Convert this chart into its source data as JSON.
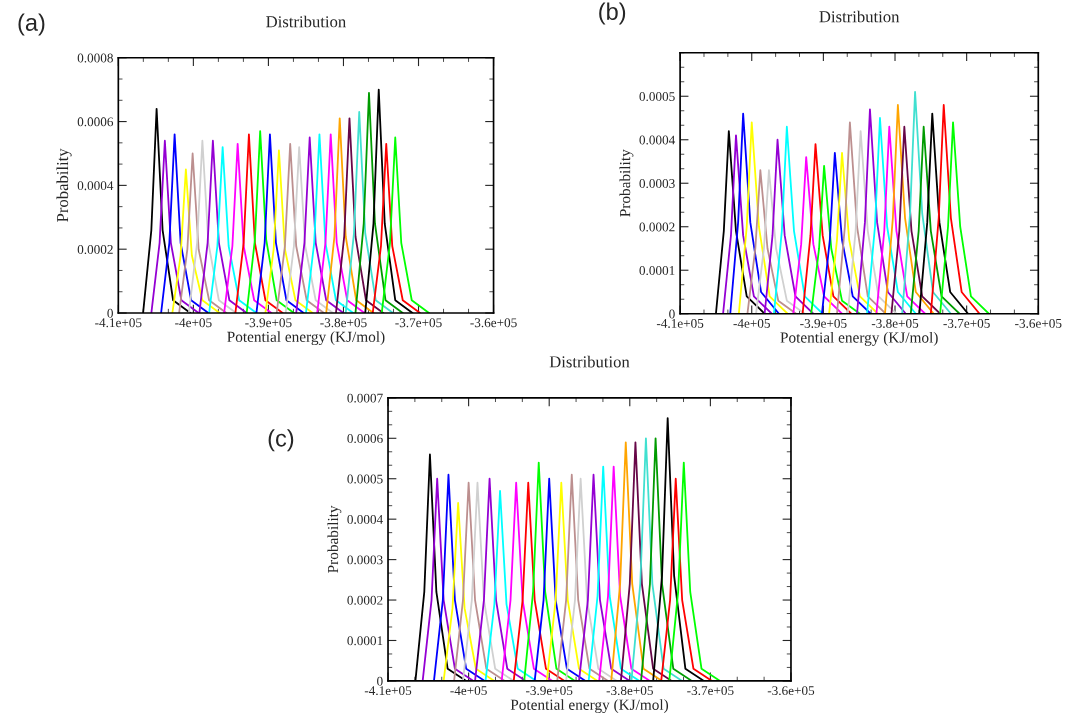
{
  "chart_data": [
    {
      "type": "line",
      "title": "Distribution",
      "xlabel": "Potential energy (KJ/mol)",
      "ylabel": "Probability",
      "annotations": [
        "(a)"
      ],
      "xlim": [
        -410000,
        -360000
      ],
      "ylim": [
        0,
        0.0008
      ],
      "xticks": [
        {
          "value": -410000,
          "label": "-4.1e+05"
        },
        {
          "value": -400000,
          "label": "-4e+05"
        },
        {
          "value": -390000,
          "label": "-3.9e+05"
        },
        {
          "value": -380000,
          "label": "-3.8e+05"
        },
        {
          "value": -370000,
          "label": "-3.7e+05"
        },
        {
          "value": -360000,
          "label": "-3.6e+05"
        }
      ],
      "yticks": [
        0,
        0.0002,
        0.0004,
        0.0006,
        0.0008
      ],
      "grid": false,
      "marker": "none",
      "line_style": "solid",
      "series": [
        {
          "color": "#000000",
          "x": [
            -406700,
            -405600,
            -404900,
            -404100,
            -402700,
            -400400
          ],
          "values": [
            0,
            0.00026,
            0.00064,
            0.00026,
            4e-05,
            0
          ]
        },
        {
          "color": "#9400d3",
          "x": [
            -405600,
            -404500,
            -403800,
            -403000,
            -401600,
            -399300
          ],
          "values": [
            0,
            0.00022,
            0.00054,
            0.00022,
            4e-05,
            0
          ]
        },
        {
          "color": "#0000ff",
          "x": [
            -404300,
            -403200,
            -402500,
            -401700,
            -400300,
            -398000
          ],
          "values": [
            0,
            0.00022,
            0.00056,
            0.00022,
            4e-05,
            0
          ]
        },
        {
          "color": "#ffff00",
          "x": [
            -402800,
            -401700,
            -401000,
            -400200,
            -398800,
            -396500
          ],
          "values": [
            0,
            0.00018,
            0.00045,
            0.00018,
            4e-05,
            0
          ]
        },
        {
          "color": "#bc8f8f",
          "x": [
            -401900,
            -400800,
            -400100,
            -399300,
            -397900,
            -395600
          ],
          "values": [
            0,
            0.0002,
            0.0005,
            0.0002,
            4e-05,
            0
          ]
        },
        {
          "color": "#d0d0d0",
          "x": [
            -400600,
            -399500,
            -398800,
            -398000,
            -396600,
            -394300
          ],
          "values": [
            0,
            0.00022,
            0.00054,
            0.00022,
            4e-05,
            0
          ]
        },
        {
          "color": "#9400d3",
          "x": [
            -399200,
            -398100,
            -397400,
            -396600,
            -395200,
            -392900
          ],
          "values": [
            0,
            0.00022,
            0.00054,
            0.00022,
            4e-05,
            0
          ]
        },
        {
          "color": "#00ffff",
          "x": [
            -397900,
            -396800,
            -396100,
            -395300,
            -393900,
            -391600
          ],
          "values": [
            0,
            0.00021,
            0.00052,
            0.00021,
            4e-05,
            0
          ]
        },
        {
          "color": "#ff00ff",
          "x": [
            -395900,
            -394800,
            -394100,
            -393300,
            -391900,
            -389600
          ],
          "values": [
            0,
            0.00021,
            0.00053,
            0.00021,
            4e-05,
            0
          ]
        },
        {
          "color": "#ff0000",
          "x": [
            -394400,
            -393300,
            -392600,
            -391800,
            -390400,
            -388100
          ],
          "values": [
            0,
            0.00022,
            0.00056,
            0.00022,
            4e-05,
            0
          ]
        },
        {
          "color": "#00ff00",
          "x": [
            -392900,
            -391800,
            -391100,
            -390300,
            -388900,
            -386600
          ],
          "values": [
            0,
            0.00023,
            0.00057,
            0.00023,
            4e-05,
            0
          ]
        },
        {
          "color": "#0000ff",
          "x": [
            -391600,
            -390500,
            -389800,
            -389000,
            -387600,
            -385300
          ],
          "values": [
            0,
            0.00022,
            0.00056,
            0.00022,
            4e-05,
            0
          ]
        },
        {
          "color": "#ffff00",
          "x": [
            -390400,
            -389300,
            -388600,
            -387800,
            -386400,
            -384100
          ],
          "values": [
            0,
            0.0002,
            0.00051,
            0.0002,
            4e-05,
            0
          ]
        },
        {
          "color": "#bc8f8f",
          "x": [
            -388900,
            -387800,
            -387100,
            -386300,
            -384900,
            -382600
          ],
          "values": [
            0,
            0.00021,
            0.00053,
            0.00021,
            4e-05,
            0
          ]
        },
        {
          "color": "#d0d0d0",
          "x": [
            -387700,
            -386600,
            -385900,
            -385100,
            -383700,
            -381400
          ],
          "values": [
            0,
            0.00021,
            0.00052,
            0.00021,
            4e-05,
            0
          ]
        },
        {
          "color": "#9400d3",
          "x": [
            -386300,
            -385200,
            -384500,
            -383700,
            -382300,
            -380000
          ],
          "values": [
            0,
            0.00022,
            0.00055,
            0.00022,
            4e-05,
            0
          ]
        },
        {
          "color": "#00ffff",
          "x": [
            -385000,
            -383900,
            -383200,
            -382400,
            -381000,
            -378700
          ],
          "values": [
            0,
            0.00022,
            0.00056,
            0.00022,
            4e-05,
            0
          ]
        },
        {
          "color": "#ff00ff",
          "x": [
            -383500,
            -382400,
            -381700,
            -380900,
            -379500,
            -377200
          ],
          "values": [
            0,
            0.00022,
            0.00056,
            0.00022,
            4e-05,
            0
          ]
        },
        {
          "color": "#ffa500",
          "x": [
            -382300,
            -381200,
            -380500,
            -379700,
            -378300,
            -376000
          ],
          "values": [
            0,
            0.00024,
            0.00061,
            0.00024,
            4e-05,
            0
          ]
        },
        {
          "color": "#670748",
          "x": [
            -381000,
            -379900,
            -379200,
            -378400,
            -377000,
            -374700
          ],
          "values": [
            0,
            0.00024,
            0.00061,
            0.00024,
            4e-05,
            0
          ]
        },
        {
          "color": "#40e0d0",
          "x": [
            -379700,
            -378600,
            -377900,
            -377100,
            -375700,
            -373400
          ],
          "values": [
            0,
            0.00025,
            0.00063,
            0.00025,
            4e-05,
            0
          ]
        },
        {
          "color": "#009b00",
          "x": [
            -378400,
            -377300,
            -376600,
            -375800,
            -374400,
            -372100
          ],
          "values": [
            0,
            0.00028,
            0.00069,
            0.00028,
            4e-05,
            0
          ]
        },
        {
          "color": "#000000",
          "x": [
            -377100,
            -376000,
            -375300,
            -374500,
            -373100,
            -370800
          ],
          "values": [
            0,
            0.00028,
            0.0007,
            0.00028,
            4e-05,
            0
          ]
        },
        {
          "color": "#ff0000",
          "x": [
            -376100,
            -375000,
            -374300,
            -373500,
            -372100,
            -369800
          ],
          "values": [
            0,
            0.00021,
            0.00053,
            0.00021,
            4e-05,
            0
          ]
        },
        {
          "color": "#00ff00",
          "x": [
            -374900,
            -373800,
            -373100,
            -372300,
            -370900,
            -368600
          ],
          "values": [
            0,
            0.00022,
            0.00055,
            0.00022,
            4e-05,
            0
          ]
        }
      ]
    },
    {
      "type": "line",
      "title": "Distribution",
      "xlabel": "Potential energy (KJ/mol)",
      "ylabel": "Probability",
      "annotations": [
        "(b)"
      ],
      "xlim": [
        -410000,
        -360000
      ],
      "ylim": [
        0,
        0.0006
      ],
      "xticks": [
        {
          "value": -410000,
          "label": "-4.1e+05"
        },
        {
          "value": -400000,
          "label": "-4e+05"
        },
        {
          "value": -390000,
          "label": "-3.9e+05"
        },
        {
          "value": -380000,
          "label": "-3.8e+05"
        },
        {
          "value": -370000,
          "label": "-3.7e+05"
        },
        {
          "value": -360000,
          "label": "-3.6e+05"
        }
      ],
      "yticks": [
        0,
        0.0001,
        0.0002,
        0.0003,
        0.0004,
        0.0005
      ],
      "grid": false,
      "marker": "none",
      "line_style": "solid",
      "series": [
        {
          "color": "#000000",
          "x": [
            -405000,
            -403900,
            -403200,
            -402200,
            -400700,
            -398200
          ],
          "values": [
            0,
            0.00019,
            0.00042,
            0.00019,
            4e-05,
            0
          ]
        },
        {
          "color": "#9400d3",
          "x": [
            -404000,
            -402900,
            -402200,
            -401200,
            -399700,
            -397200
          ],
          "values": [
            0,
            0.00018,
            0.00041,
            0.00018,
            4e-05,
            0
          ]
        },
        {
          "color": "#0000ff",
          "x": [
            -403000,
            -401900,
            -401200,
            -400200,
            -398700,
            -396200
          ],
          "values": [
            0,
            0.00021,
            0.00046,
            0.00021,
            5e-05,
            0
          ]
        },
        {
          "color": "#ffff00",
          "x": [
            -401800,
            -400700,
            -400000,
            -399000,
            -397500,
            -395000
          ],
          "values": [
            0,
            0.0002,
            0.00044,
            0.0002,
            4e-05,
            0
          ]
        },
        {
          "color": "#bc8f8f",
          "x": [
            -400600,
            -399500,
            -398800,
            -397800,
            -396300,
            -393800
          ],
          "values": [
            0,
            0.00015,
            0.00033,
            0.00015,
            3e-05,
            0
          ]
        },
        {
          "color": "#d0d0d0",
          "x": [
            -399400,
            -398300,
            -397600,
            -396600,
            -395100,
            -392600
          ],
          "values": [
            0,
            0.00015,
            0.00033,
            0.00015,
            3e-05,
            0
          ]
        },
        {
          "color": "#9400d3",
          "x": [
            -398200,
            -397100,
            -396400,
            -395400,
            -393900,
            -391400
          ],
          "values": [
            0,
            0.00018,
            0.0004,
            0.00018,
            4e-05,
            0
          ]
        },
        {
          "color": "#00ffff",
          "x": [
            -396900,
            -395800,
            -395100,
            -394100,
            -392600,
            -390100
          ],
          "values": [
            0,
            0.00019,
            0.00043,
            0.00019,
            4e-05,
            0
          ]
        },
        {
          "color": "#ff00ff",
          "x": [
            -394200,
            -393100,
            -392400,
            -391400,
            -389900,
            -387400
          ],
          "values": [
            0,
            0.00016,
            0.00036,
            0.00016,
            4e-05,
            0
          ]
        },
        {
          "color": "#ff0000",
          "x": [
            -392900,
            -391800,
            -391100,
            -390100,
            -388600,
            -386100
          ],
          "values": [
            0,
            0.00018,
            0.00039,
            0.00018,
            4e-05,
            0
          ]
        },
        {
          "color": "#00ff00",
          "x": [
            -391700,
            -390600,
            -389900,
            -388900,
            -387400,
            -384900
          ],
          "values": [
            0,
            0.00015,
            0.00034,
            0.00015,
            3e-05,
            0
          ]
        },
        {
          "color": "#0000ff",
          "x": [
            -390200,
            -389100,
            -388400,
            -387400,
            -385900,
            -383400
          ],
          "values": [
            0,
            0.00017,
            0.00037,
            0.00017,
            4e-05,
            0
          ]
        },
        {
          "color": "#ffff00",
          "x": [
            -389200,
            -388100,
            -387400,
            -386400,
            -384900,
            -382400
          ],
          "values": [
            0,
            0.00017,
            0.00037,
            0.00017,
            4e-05,
            0
          ]
        },
        {
          "color": "#bc8f8f",
          "x": [
            -388100,
            -387000,
            -386300,
            -385300,
            -383800,
            -381300
          ],
          "values": [
            0,
            0.0002,
            0.00044,
            0.0002,
            4e-05,
            0
          ]
        },
        {
          "color": "#d0d0d0",
          "x": [
            -386600,
            -385500,
            -384800,
            -383800,
            -382300,
            -379800
          ],
          "values": [
            0,
            0.00019,
            0.00042,
            0.00019,
            4e-05,
            0
          ]
        },
        {
          "color": "#9400d3",
          "x": [
            -385300,
            -384200,
            -383500,
            -382500,
            -381000,
            -378500
          ],
          "values": [
            0,
            0.00021,
            0.00047,
            0.00021,
            5e-05,
            0
          ]
        },
        {
          "color": "#00ffff",
          "x": [
            -383900,
            -382800,
            -382100,
            -381100,
            -379600,
            -377100
          ],
          "values": [
            0,
            0.0002,
            0.00045,
            0.0002,
            5e-05,
            0
          ]
        },
        {
          "color": "#ff00ff",
          "x": [
            -382600,
            -381500,
            -380800,
            -379800,
            -378300,
            -375800
          ],
          "values": [
            0,
            0.00019,
            0.00043,
            0.00019,
            4e-05,
            0
          ]
        },
        {
          "color": "#ffa500",
          "x": [
            -381400,
            -380300,
            -379600,
            -378600,
            -377100,
            -374600
          ],
          "values": [
            0,
            0.00022,
            0.00048,
            0.00022,
            5e-05,
            0
          ]
        },
        {
          "color": "#670748",
          "x": [
            -380500,
            -379400,
            -378700,
            -377700,
            -376200,
            -373700
          ],
          "values": [
            0,
            0.00019,
            0.00043,
            0.00019,
            4e-05,
            0
          ]
        },
        {
          "color": "#40e0d0",
          "x": [
            -379000,
            -377900,
            -377200,
            -376200,
            -374700,
            -372200
          ],
          "values": [
            0,
            0.00023,
            0.00051,
            0.00023,
            5e-05,
            0
          ]
        },
        {
          "color": "#009b00",
          "x": [
            -377800,
            -376700,
            -376000,
            -375000,
            -373500,
            -371000
          ],
          "values": [
            0,
            0.00019,
            0.00043,
            0.00019,
            4e-05,
            0
          ]
        },
        {
          "color": "#000000",
          "x": [
            -376600,
            -375500,
            -374800,
            -373800,
            -372300,
            -369800
          ],
          "values": [
            0,
            0.00021,
            0.00046,
            0.00021,
            5e-05,
            0
          ]
        },
        {
          "color": "#ff0000",
          "x": [
            -375000,
            -373900,
            -373200,
            -372200,
            -370700,
            -368200
          ],
          "values": [
            0,
            0.00022,
            0.00048,
            0.00022,
            5e-05,
            0
          ]
        },
        {
          "color": "#00ff00",
          "x": [
            -373700,
            -372600,
            -371900,
            -370900,
            -369400,
            -366900
          ],
          "values": [
            0,
            0.0002,
            0.00044,
            0.0002,
            4e-05,
            0
          ]
        }
      ]
    },
    {
      "type": "line",
      "title": "Distribution",
      "xlabel": "Potential energy (KJ/mol)",
      "ylabel": "Probability",
      "annotations": [
        "(c)"
      ],
      "xlim": [
        -410000,
        -360000
      ],
      "ylim": [
        0,
        0.0007
      ],
      "xticks": [
        {
          "value": -410000,
          "label": "-4.1e+05"
        },
        {
          "value": -400000,
          "label": "-4e+05"
        },
        {
          "value": -390000,
          "label": "-3.9e+05"
        },
        {
          "value": -380000,
          "label": "-3.8e+05"
        },
        {
          "value": -370000,
          "label": "-3.7e+05"
        },
        {
          "value": -360000,
          "label": "-3.6e+05"
        }
      ],
      "yticks": [
        0,
        0.0001,
        0.0002,
        0.0003,
        0.0004,
        0.0005,
        0.0006,
        0.0007
      ],
      "grid": false,
      "marker": "none",
      "line_style": "solid",
      "series": [
        {
          "color": "#000000",
          "x": [
            -406600,
            -405500,
            -404800,
            -404000,
            -402600,
            -400300
          ],
          "values": [
            0,
            0.00022,
            0.00056,
            0.00022,
            3e-05,
            0
          ]
        },
        {
          "color": "#9400d3",
          "x": [
            -405700,
            -404600,
            -403900,
            -403100,
            -401700,
            -399400
          ],
          "values": [
            0,
            0.0002,
            0.0005,
            0.0002,
            3e-05,
            0
          ]
        },
        {
          "color": "#0000ff",
          "x": [
            -404300,
            -403200,
            -402500,
            -401700,
            -400300,
            -398000
          ],
          "values": [
            0,
            0.0002,
            0.00051,
            0.0002,
            3e-05,
            0
          ]
        },
        {
          "color": "#ffff00",
          "x": [
            -403100,
            -402000,
            -401300,
            -400500,
            -399100,
            -396800
          ],
          "values": [
            0,
            0.00018,
            0.00044,
            0.00018,
            3e-05,
            0
          ]
        },
        {
          "color": "#bc8f8f",
          "x": [
            -401800,
            -400700,
            -400000,
            -399200,
            -397800,
            -395500
          ],
          "values": [
            0,
            0.0002,
            0.00049,
            0.0002,
            3e-05,
            0
          ]
        },
        {
          "color": "#d0d0d0",
          "x": [
            -400700,
            -399600,
            -398900,
            -398100,
            -396700,
            -394400
          ],
          "values": [
            0,
            0.0002,
            0.00049,
            0.0002,
            3e-05,
            0
          ]
        },
        {
          "color": "#9400d3",
          "x": [
            -399200,
            -398100,
            -397400,
            -396600,
            -395200,
            -392900
          ],
          "values": [
            0,
            0.0002,
            0.0005,
            0.0002,
            3e-05,
            0
          ]
        },
        {
          "color": "#00ffff",
          "x": [
            -397900,
            -396800,
            -396100,
            -395300,
            -393900,
            -391600
          ],
          "values": [
            0,
            0.00019,
            0.00047,
            0.00019,
            3e-05,
            0
          ]
        },
        {
          "color": "#ff00ff",
          "x": [
            -395900,
            -394800,
            -394100,
            -393300,
            -391900,
            -389600
          ],
          "values": [
            0,
            0.0002,
            0.00049,
            0.0002,
            3e-05,
            0
          ]
        },
        {
          "color": "#ff0000",
          "x": [
            -394400,
            -393300,
            -392600,
            -391800,
            -390400,
            -388100
          ],
          "values": [
            0,
            0.0002,
            0.00049,
            0.0002,
            3e-05,
            0
          ]
        },
        {
          "color": "#00ff00",
          "x": [
            -393100,
            -392000,
            -391300,
            -390500,
            -389100,
            -386800
          ],
          "values": [
            0,
            0.00022,
            0.00054,
            0.00022,
            3e-05,
            0
          ]
        },
        {
          "color": "#0000ff",
          "x": [
            -391800,
            -390700,
            -390000,
            -389200,
            -387800,
            -385500
          ],
          "values": [
            0,
            0.0002,
            0.0005,
            0.0002,
            3e-05,
            0
          ]
        },
        {
          "color": "#ffff00",
          "x": [
            -390300,
            -389200,
            -388500,
            -387700,
            -386300,
            -384000
          ],
          "values": [
            0,
            0.0002,
            0.00049,
            0.0002,
            3e-05,
            0
          ]
        },
        {
          "color": "#bc8f8f",
          "x": [
            -389000,
            -387900,
            -387200,
            -386400,
            -385000,
            -382700
          ],
          "values": [
            0,
            0.0002,
            0.00051,
            0.0002,
            3e-05,
            0
          ]
        },
        {
          "color": "#d0d0d0",
          "x": [
            -387900,
            -386800,
            -386100,
            -385300,
            -383900,
            -381600
          ],
          "values": [
            0,
            0.0002,
            0.0005,
            0.0002,
            3e-05,
            0
          ]
        },
        {
          "color": "#9400d3",
          "x": [
            -386300,
            -385200,
            -384500,
            -383700,
            -382300,
            -380000
          ],
          "values": [
            0,
            0.0002,
            0.00051,
            0.0002,
            3e-05,
            0
          ]
        },
        {
          "color": "#00ffff",
          "x": [
            -385100,
            -384000,
            -383300,
            -382500,
            -381100,
            -378800
          ],
          "values": [
            0,
            0.00021,
            0.00053,
            0.00021,
            3e-05,
            0
          ]
        },
        {
          "color": "#ff00ff",
          "x": [
            -383800,
            -382700,
            -382000,
            -381200,
            -379800,
            -377500
          ],
          "values": [
            0,
            0.00021,
            0.00053,
            0.00021,
            3e-05,
            0
          ]
        },
        {
          "color": "#ffa500",
          "x": [
            -382300,
            -381200,
            -380500,
            -379700,
            -378300,
            -376000
          ],
          "values": [
            0,
            0.00024,
            0.00059,
            0.00024,
            3e-05,
            0
          ]
        },
        {
          "color": "#670748",
          "x": [
            -381100,
            -380000,
            -379300,
            -378500,
            -377100,
            -374800
          ],
          "values": [
            0,
            0.00024,
            0.00059,
            0.00024,
            3e-05,
            0
          ]
        },
        {
          "color": "#40e0d0",
          "x": [
            -379800,
            -378700,
            -378000,
            -377200,
            -375800,
            -373500
          ],
          "values": [
            0,
            0.00024,
            0.0006,
            0.00024,
            3e-05,
            0
          ]
        },
        {
          "color": "#009b00",
          "x": [
            -378600,
            -377500,
            -376800,
            -376000,
            -374600,
            -372300
          ],
          "values": [
            0,
            0.00024,
            0.0006,
            0.00024,
            3e-05,
            0
          ]
        },
        {
          "color": "#000000",
          "x": [
            -377100,
            -376000,
            -375300,
            -374500,
            -373100,
            -370800
          ],
          "values": [
            0,
            0.00026,
            0.00065,
            0.00026,
            3e-05,
            0
          ]
        },
        {
          "color": "#ff0000",
          "x": [
            -376100,
            -375000,
            -374300,
            -373500,
            -372100,
            -369800
          ],
          "values": [
            0,
            0.0002,
            0.0005,
            0.0002,
            3e-05,
            0
          ]
        },
        {
          "color": "#00ff00",
          "x": [
            -375100,
            -374000,
            -373300,
            -372500,
            -371100,
            -368800
          ],
          "values": [
            0,
            0.00022,
            0.00054,
            0.00022,
            3e-05,
            0
          ]
        }
      ]
    }
  ]
}
